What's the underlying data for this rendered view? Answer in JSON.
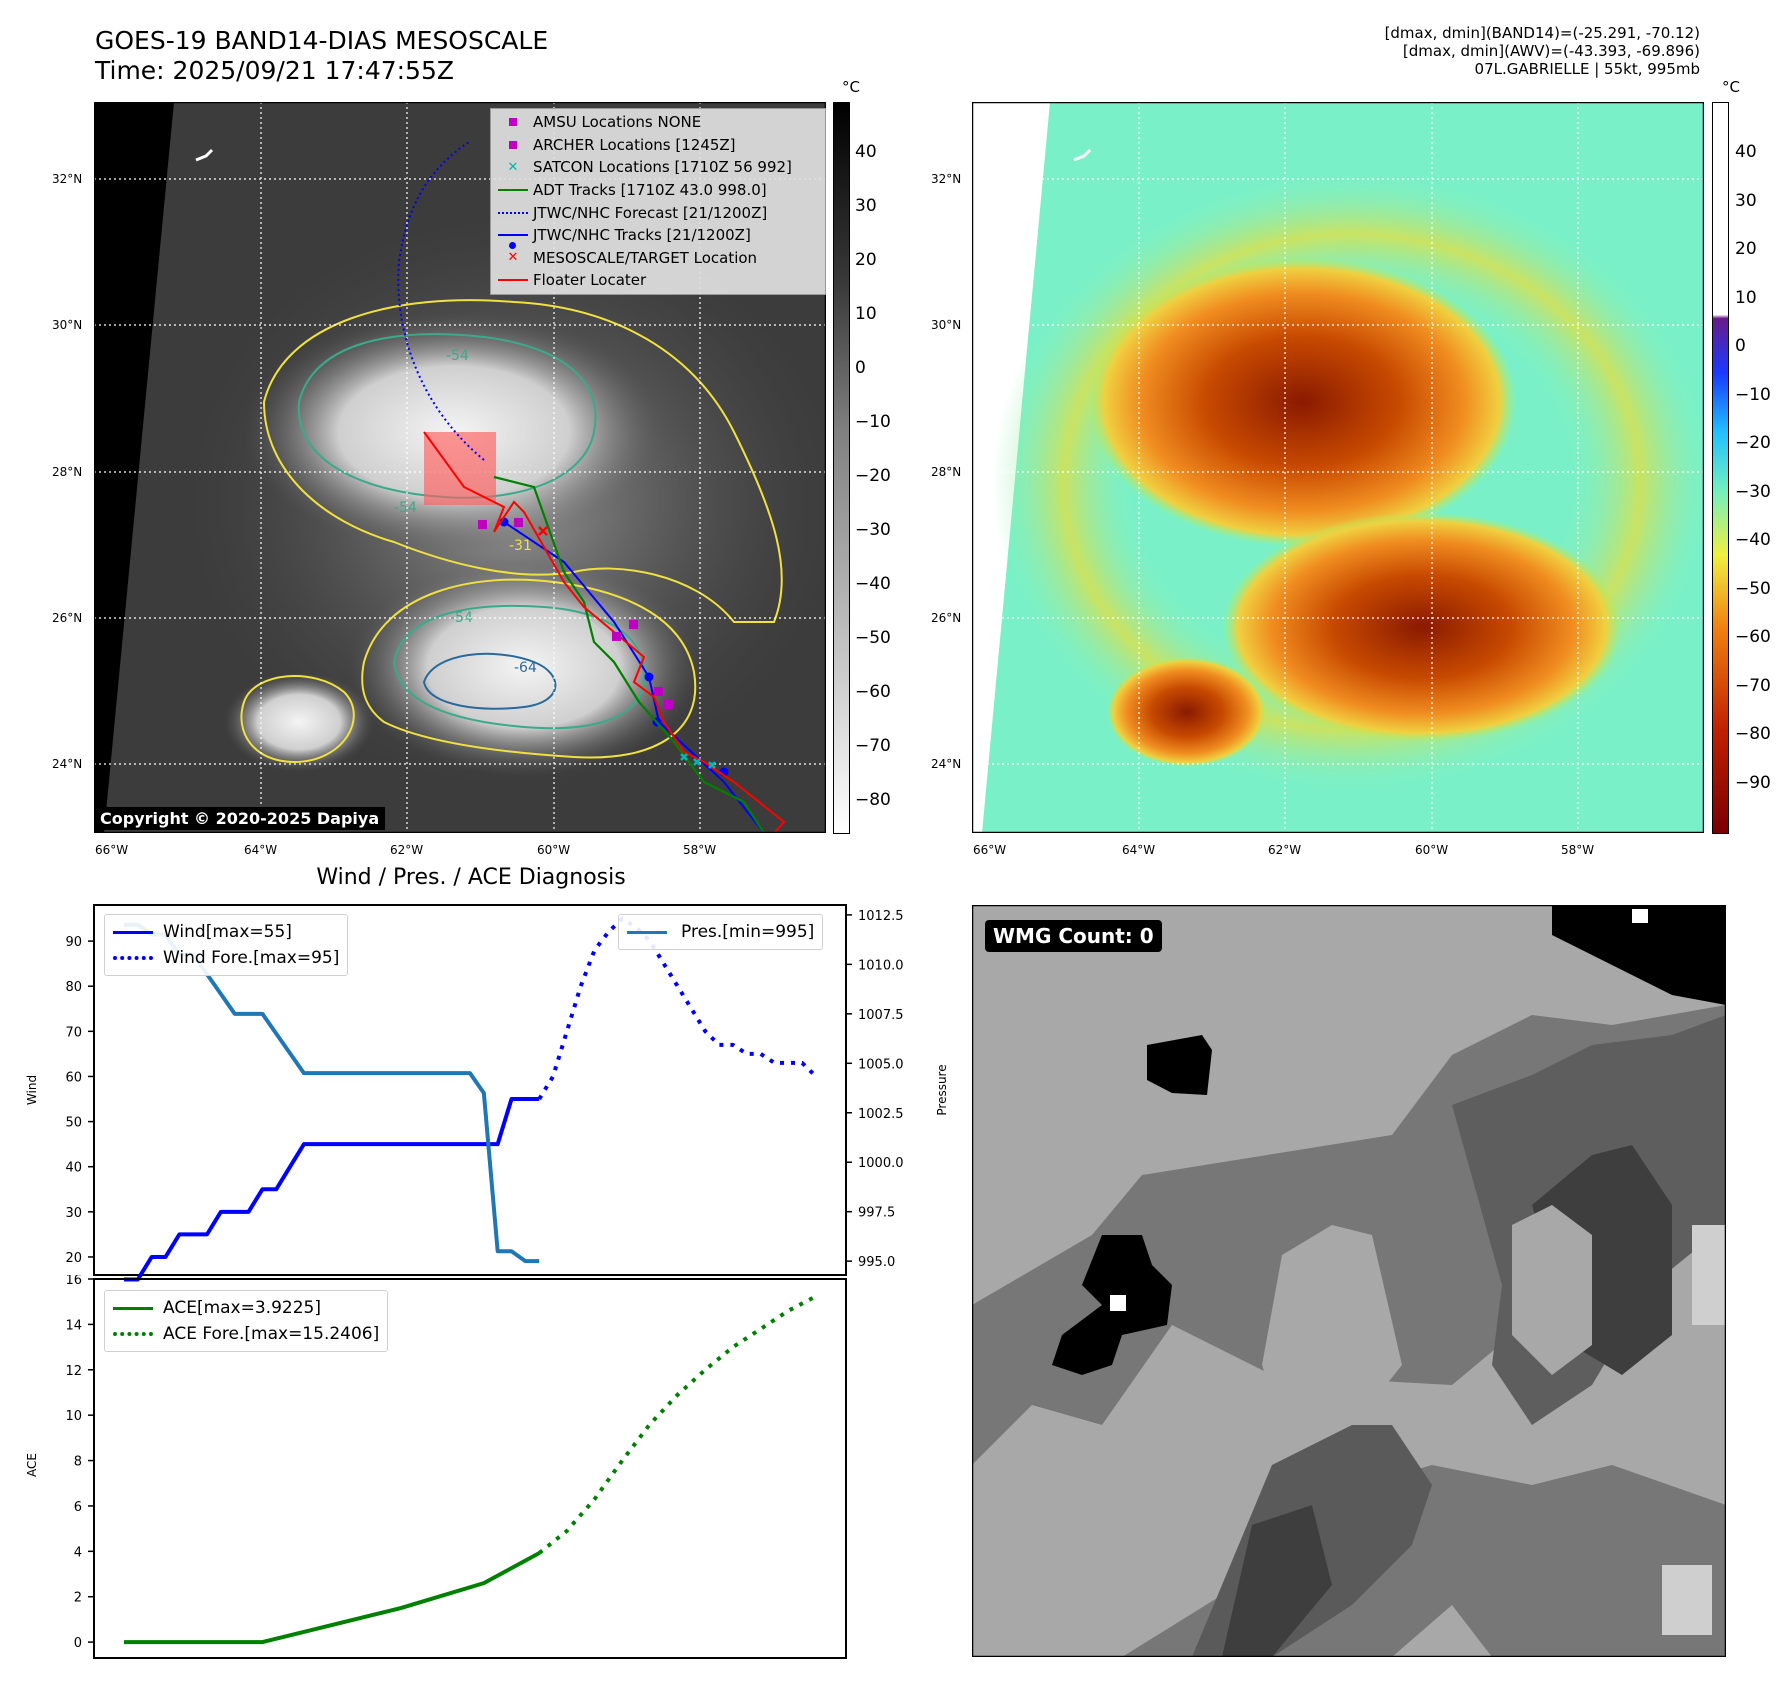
{
  "header": {
    "title_line1": "GOES-19 BAND14-DIAS MESOSCALE",
    "title_line2": "Time: 2025/09/21 17:47:55Z",
    "info_line1": "[dmax, dmin](BAND14)=(-25.291, -70.12)",
    "info_line2": "[dmax, dmin](AWV)=(-43.393, -69.896)",
    "info_line3": "07L.GABRIELLE | 55kt, 995mb"
  },
  "map": {
    "lat_labels": [
      "32°N",
      "30°N",
      "28°N",
      "26°N",
      "24°N"
    ],
    "lon_labels": [
      "66°W",
      "64°W",
      "62°W",
      "60°W",
      "58°W"
    ],
    "copyright": "Copyright © 2020-2025 Dapiya",
    "contour_labels": [
      "-54",
      "-54",
      "-31",
      "-64",
      "-54"
    ],
    "legend": [
      {
        "label": "AMSU Locations NONE",
        "symbol": "square",
        "color": "#c000c0"
      },
      {
        "label": "ARCHER Locations [1245Z]",
        "symbol": "square",
        "color": "#c000c0"
      },
      {
        "label": "SATCON Locations [1710Z 56 992]",
        "symbol": "x",
        "color": "#00b5b5"
      },
      {
        "label": "ADT Tracks [1710Z 43.0 998.0]",
        "symbol": "line",
        "color": "#008000"
      },
      {
        "label": "JTWC/NHC Forecast [21/1200Z]",
        "symbol": "dotted",
        "color": "#0000ff"
      },
      {
        "label": "JTWC/NHC Tracks [21/1200Z]",
        "symbol": "line-dot",
        "color": "#0000ff"
      },
      {
        "label": "MESOSCALE/TARGET Location",
        "symbol": "x",
        "color": "#ff0000"
      },
      {
        "label": "Floater Locater",
        "symbol": "line",
        "color": "#ff0000"
      }
    ],
    "colorbar1": {
      "unit": "°C",
      "ticks": [
        "40",
        "30",
        "20",
        "10",
        "0",
        "−10",
        "−20",
        "−30",
        "−40",
        "−50",
        "−60",
        "−70",
        "−80"
      ]
    },
    "colorbar2": {
      "unit": "°C",
      "ticks": [
        "40",
        "30",
        "20",
        "10",
        "0",
        "−10",
        "−20",
        "−30",
        "−40",
        "−50",
        "−60",
        "−70",
        "−80",
        "−90"
      ]
    }
  },
  "wmg": {
    "label": "WMG Count: 0"
  },
  "chart_data": [
    {
      "type": "line",
      "title": "Wind / Pres. / ACE Diagnosis",
      "ylabel": "Wind",
      "ylabel_right": "Pressure",
      "x": [
        0,
        1,
        2,
        3,
        4,
        5,
        6,
        7,
        8,
        9,
        10,
        11,
        12,
        13,
        14,
        15,
        16,
        17,
        18,
        19,
        20,
        21,
        22,
        23,
        24,
        25,
        26,
        27,
        28,
        29,
        30,
        31,
        32,
        33,
        34,
        35,
        36,
        37,
        38,
        39,
        40,
        41,
        42,
        43,
        44,
        45,
        46,
        47,
        48,
        49,
        50
      ],
      "ylim": [
        16,
        98
      ],
      "yticks": [
        "20",
        "30",
        "40",
        "50",
        "60",
        "70",
        "80",
        "90"
      ],
      "y2lim": [
        994.3,
        1013.0
      ],
      "y2ticks": [
        "995.0",
        "997.5",
        "1000.0",
        "1002.5",
        "1005.0",
        "1007.5",
        "1010.0",
        "1012.5"
      ],
      "series": [
        {
          "name": "Wind[max=55]",
          "color": "#0000ff",
          "style": "solid",
          "x": [
            0,
            1,
            2,
            3,
            4,
            5,
            6,
            7,
            8,
            9,
            10,
            11,
            12,
            13,
            14,
            15,
            16,
            17,
            18,
            19,
            20,
            21,
            22,
            23,
            24,
            25,
            26,
            27,
            28,
            29,
            30
          ],
          "values": [
            15,
            15,
            20,
            20,
            25,
            25,
            25,
            30,
            30,
            30,
            35,
            35,
            40,
            45,
            45,
            45,
            45,
            45,
            45,
            45,
            45,
            45,
            45,
            45,
            45,
            45,
            45,
            45,
            55,
            55,
            55
          ]
        },
        {
          "name": "Wind Fore.[max=95]",
          "color": "#0000ff",
          "style": "dotted",
          "x": [
            30,
            31,
            32,
            33,
            34,
            35,
            36,
            37,
            38,
            39,
            40,
            41,
            42,
            43,
            44,
            45,
            46,
            47,
            48,
            49,
            50
          ],
          "values": [
            55,
            60,
            70,
            80,
            88,
            92,
            95,
            93,
            90,
            85,
            80,
            75,
            70,
            67,
            67,
            65,
            65,
            63,
            63,
            63,
            60
          ]
        },
        {
          "name": "Pres.[min=995]",
          "color": "#1f77b4",
          "style": "solid",
          "axis": "right",
          "x": [
            0,
            1,
            2,
            3,
            4,
            5,
            6,
            7,
            8,
            9,
            10,
            11,
            12,
            13,
            14,
            15,
            16,
            17,
            18,
            19,
            20,
            21,
            22,
            23,
            24,
            25,
            26,
            27,
            28,
            29,
            30
          ],
          "values": [
            1012.0,
            1012.0,
            1011.5,
            1011.5,
            1010.5,
            1010.5,
            1009.5,
            1008.5,
            1007.5,
            1007.5,
            1007.5,
            1006.5,
            1005.5,
            1004.5,
            1004.5,
            1004.5,
            1004.5,
            1004.5,
            1004.5,
            1004.5,
            1004.5,
            1004.5,
            1004.5,
            1004.5,
            1004.5,
            1004.5,
            1003.5,
            995.5,
            995.5,
            995.0,
            995.0
          ]
        }
      ]
    },
    {
      "type": "line",
      "ylabel": "ACE",
      "ylim": [
        -0.7,
        16
      ],
      "yticks": [
        "0",
        "2",
        "4",
        "6",
        "8",
        "10",
        "12",
        "14",
        "16"
      ],
      "series": [
        {
          "name": "ACE[max=3.9225]",
          "color": "#008000",
          "style": "solid",
          "x": [
            0,
            10,
            12,
            20,
            26,
            30
          ],
          "values": [
            0,
            0,
            0.3,
            1.5,
            2.6,
            3.9225
          ]
        },
        {
          "name": "ACE Fore.[max=15.2406]",
          "color": "#008000",
          "style": "dotted",
          "x": [
            30,
            32,
            34,
            36,
            38,
            40,
            42,
            44,
            46,
            48,
            50
          ],
          "values": [
            3.9225,
            4.9,
            6.3,
            8.0,
            9.6,
            10.9,
            12.0,
            13.0,
            13.8,
            14.6,
            15.2406
          ]
        }
      ]
    }
  ]
}
